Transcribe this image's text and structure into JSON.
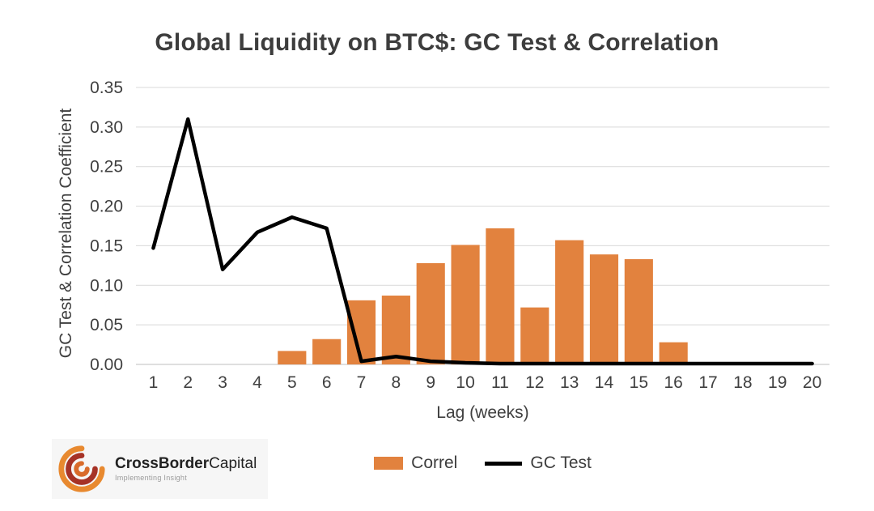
{
  "chart_data": {
    "type": "bar",
    "title": "Global Liquidity on BTC$: GC Test & Correlation",
    "xlabel": "Lag (weeks)",
    "ylabel": "GC Test & Correlation Coefficient",
    "categories": [
      1,
      2,
      3,
      4,
      5,
      6,
      7,
      8,
      9,
      10,
      11,
      12,
      13,
      14,
      15,
      16,
      17,
      18,
      19,
      20
    ],
    "series": [
      {
        "name": "Correl",
        "type": "bar",
        "color": "#E2823E",
        "values": [
          null,
          null,
          null,
          null,
          0.017,
          0.032,
          0.081,
          0.087,
          0.128,
          0.151,
          0.172,
          0.072,
          0.157,
          0.139,
          0.133,
          0.028,
          null,
          null,
          null,
          null
        ]
      },
      {
        "name": "GC Test",
        "type": "line",
        "color": "#000000",
        "values": [
          0.147,
          0.31,
          0.12,
          0.167,
          0.186,
          0.172,
          0.004,
          0.01,
          0.004,
          0.002,
          0.001,
          0.001,
          0.001,
          0.001,
          0.001,
          0.001,
          0.001,
          0.001,
          0.001,
          0.001
        ]
      }
    ],
    "ylim": [
      0,
      0.35
    ],
    "ytick_step": 0.05,
    "ytick_decimals": 2,
    "grid": true,
    "legend_position": "bottom"
  },
  "logo": {
    "brand_bold": "CrossBorder",
    "brand_regular": "Capital",
    "tagline": "Implementing Insight"
  }
}
